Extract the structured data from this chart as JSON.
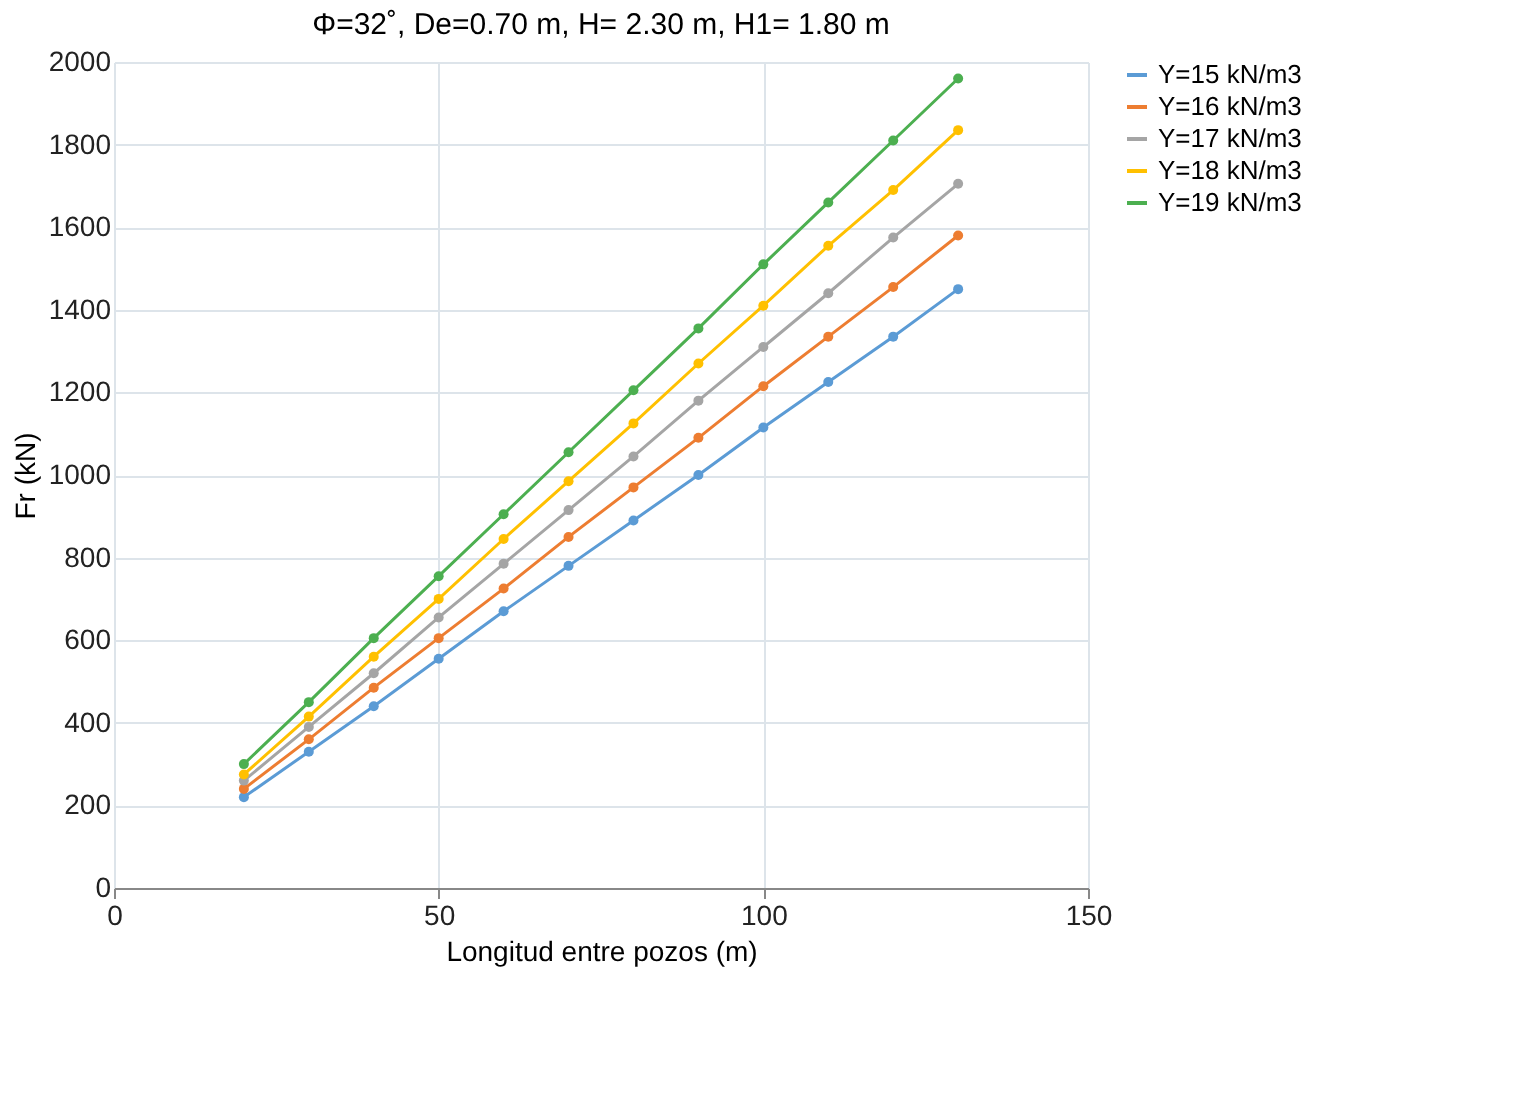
{
  "chart_data": {
    "type": "line",
    "title": "Φ=32˚, De=0.70 m, H= 2.30 m, H1= 1.80 m",
    "xlabel": "Longitud entre pozos (m)",
    "ylabel": "Fr (kN)",
    "x": [
      20,
      30,
      40,
      50,
      60,
      70,
      80,
      90,
      100,
      110,
      120,
      130
    ],
    "series": [
      {
        "name": "Y=15 kN/m3",
        "color": "#5b9bd5",
        "values": [
          220,
          330,
          440,
          555,
          670,
          780,
          890,
          1000,
          1115,
          1225,
          1335,
          1450
        ]
      },
      {
        "name": "Y=16 kN/m3",
        "color": "#ed7d31",
        "values": [
          240,
          360,
          485,
          605,
          725,
          850,
          970,
          1090,
          1215,
          1335,
          1455,
          1580
        ]
      },
      {
        "name": "Y=17 kN/m3",
        "color": "#a5a5a5",
        "values": [
          260,
          390,
          520,
          655,
          785,
          915,
          1045,
          1180,
          1310,
          1440,
          1575,
          1705
        ]
      },
      {
        "name": "Y=18 kN/m3",
        "color": "#ffc000",
        "values": [
          275,
          415,
          560,
          700,
          845,
          985,
          1125,
          1270,
          1410,
          1555,
          1690,
          1835
        ]
      },
      {
        "name": "Y=19 kN/m3",
        "color": "#4caf50",
        "values": [
          300,
          450,
          605,
          755,
          905,
          1055,
          1205,
          1355,
          1510,
          1660,
          1810,
          1960
        ]
      }
    ],
    "xlim": [
      0,
      150
    ],
    "xticks": [
      0,
      50,
      100,
      150
    ],
    "ylim": [
      0,
      2000
    ],
    "yticks": [
      0,
      200,
      400,
      600,
      800,
      1000,
      1200,
      1400,
      1600,
      1800,
      2000
    ],
    "grid": true,
    "legend": "right",
    "marker": "circle",
    "line_style": "solid"
  }
}
